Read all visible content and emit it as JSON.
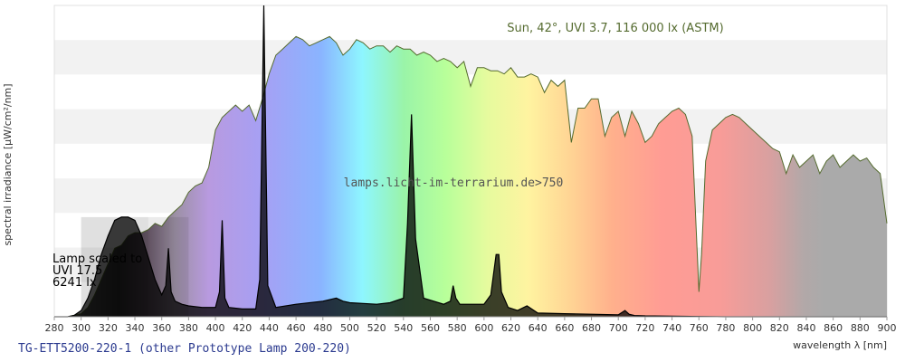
{
  "chart_data": {
    "type": "area",
    "title": "TG-ETT5200-220-1 (other Prototype Lamp 200-220)",
    "xlabel": "wavelength λ [nm]",
    "ylabel": "spectral irradiance [µW/cm²/nm]",
    "xlim": [
      280,
      900
    ],
    "x_ticks": [
      280,
      300,
      320,
      340,
      360,
      380,
      400,
      420,
      440,
      460,
      480,
      500,
      520,
      540,
      560,
      580,
      600,
      620,
      640,
      660,
      680,
      700,
      720,
      740,
      760,
      780,
      800,
      820,
      840,
      860,
      880,
      900
    ],
    "ylim": [
      0,
      1
    ],
    "grid": "horizontal bands",
    "watermark": "lamps.licht-im-terrarium.de>750",
    "lamp_annotation": [
      "Lamp scaled to",
      "UVI 17.5",
      "6241 lx"
    ],
    "series": [
      {
        "name": "Sun, 42°, UVI 3.7, 116 000 lx (ASTM)",
        "color": "#556b2f",
        "x": [
          290,
          295,
          300,
          305,
          310,
          315,
          320,
          325,
          330,
          335,
          340,
          345,
          350,
          355,
          360,
          365,
          370,
          375,
          380,
          385,
          390,
          395,
          400,
          405,
          410,
          415,
          420,
          425,
          430,
          435,
          440,
          445,
          450,
          455,
          460,
          465,
          470,
          475,
          480,
          485,
          490,
          495,
          500,
          505,
          510,
          515,
          520,
          525,
          530,
          535,
          540,
          545,
          550,
          555,
          560,
          565,
          570,
          575,
          580,
          585,
          590,
          595,
          600,
          605,
          610,
          615,
          620,
          625,
          630,
          635,
          640,
          645,
          650,
          655,
          660,
          665,
          670,
          675,
          680,
          685,
          690,
          695,
          700,
          705,
          710,
          715,
          720,
          725,
          730,
          735,
          740,
          745,
          750,
          755,
          760,
          762,
          765,
          770,
          775,
          780,
          785,
          790,
          795,
          800,
          805,
          810,
          815,
          820,
          825,
          830,
          835,
          840,
          845,
          850,
          855,
          860,
          865,
          870,
          875,
          880,
          885,
          890,
          895,
          900
        ],
        "values": [
          0,
          0.005,
          0.01,
          0.03,
          0.07,
          0.12,
          0.17,
          0.22,
          0.23,
          0.26,
          0.27,
          0.27,
          0.28,
          0.3,
          0.29,
          0.32,
          0.34,
          0.36,
          0.4,
          0.42,
          0.43,
          0.48,
          0.6,
          0.64,
          0.66,
          0.68,
          0.66,
          0.68,
          0.63,
          0.7,
          0.78,
          0.84,
          0.86,
          0.88,
          0.9,
          0.89,
          0.87,
          0.88,
          0.89,
          0.9,
          0.88,
          0.84,
          0.86,
          0.89,
          0.88,
          0.86,
          0.87,
          0.87,
          0.85,
          0.87,
          0.86,
          0.86,
          0.84,
          0.85,
          0.84,
          0.82,
          0.83,
          0.82,
          0.8,
          0.82,
          0.74,
          0.8,
          0.8,
          0.79,
          0.79,
          0.78,
          0.8,
          0.77,
          0.77,
          0.78,
          0.77,
          0.72,
          0.76,
          0.74,
          0.76,
          0.56,
          0.67,
          0.67,
          0.7,
          0.7,
          0.58,
          0.64,
          0.66,
          0.58,
          0.66,
          0.62,
          0.56,
          0.58,
          0.62,
          0.64,
          0.66,
          0.67,
          0.65,
          0.58,
          0.08,
          0.2,
          0.5,
          0.6,
          0.62,
          0.64,
          0.65,
          0.64,
          0.62,
          0.6,
          0.58,
          0.56,
          0.54,
          0.53,
          0.46,
          0.52,
          0.48,
          0.5,
          0.52,
          0.46,
          0.5,
          0.52,
          0.48,
          0.5,
          0.52,
          0.5,
          0.51,
          0.48,
          0.46,
          0.3
        ]
      },
      {
        "name": "Lamp",
        "color": "#000000",
        "x": [
          280,
          290,
          295,
          300,
          305,
          310,
          315,
          320,
          325,
          330,
          335,
          340,
          345,
          350,
          355,
          360,
          363,
          365,
          367,
          370,
          375,
          380,
          390,
          400,
          403,
          405,
          407,
          410,
          420,
          430,
          433,
          436,
          439,
          445,
          460,
          480,
          490,
          495,
          500,
          520,
          530,
          540,
          543,
          546,
          549,
          555,
          570,
          575,
          577,
          579,
          582,
          590,
          600,
          605,
          609,
          611,
          613,
          618,
          625,
          632,
          640,
          660,
          680,
          700,
          705,
          708,
          712,
          720,
          740,
          760,
          780,
          800,
          850,
          900
        ],
        "values": [
          0,
          0,
          0.005,
          0.02,
          0.06,
          0.12,
          0.2,
          0.26,
          0.31,
          0.32,
          0.32,
          0.31,
          0.26,
          0.19,
          0.12,
          0.07,
          0.1,
          0.22,
          0.08,
          0.05,
          0.04,
          0.035,
          0.03,
          0.03,
          0.08,
          0.31,
          0.06,
          0.03,
          0.025,
          0.025,
          0.12,
          1.0,
          0.1,
          0.03,
          0.04,
          0.05,
          0.06,
          0.05,
          0.045,
          0.04,
          0.045,
          0.06,
          0.3,
          0.65,
          0.25,
          0.06,
          0.04,
          0.05,
          0.1,
          0.06,
          0.04,
          0.04,
          0.04,
          0.07,
          0.2,
          0.2,
          0.08,
          0.03,
          0.02,
          0.035,
          0.012,
          0.01,
          0.008,
          0.006,
          0.02,
          0.008,
          0.004,
          0.003,
          0.002,
          0.001,
          0,
          0,
          0,
          0
        ]
      }
    ]
  }
}
